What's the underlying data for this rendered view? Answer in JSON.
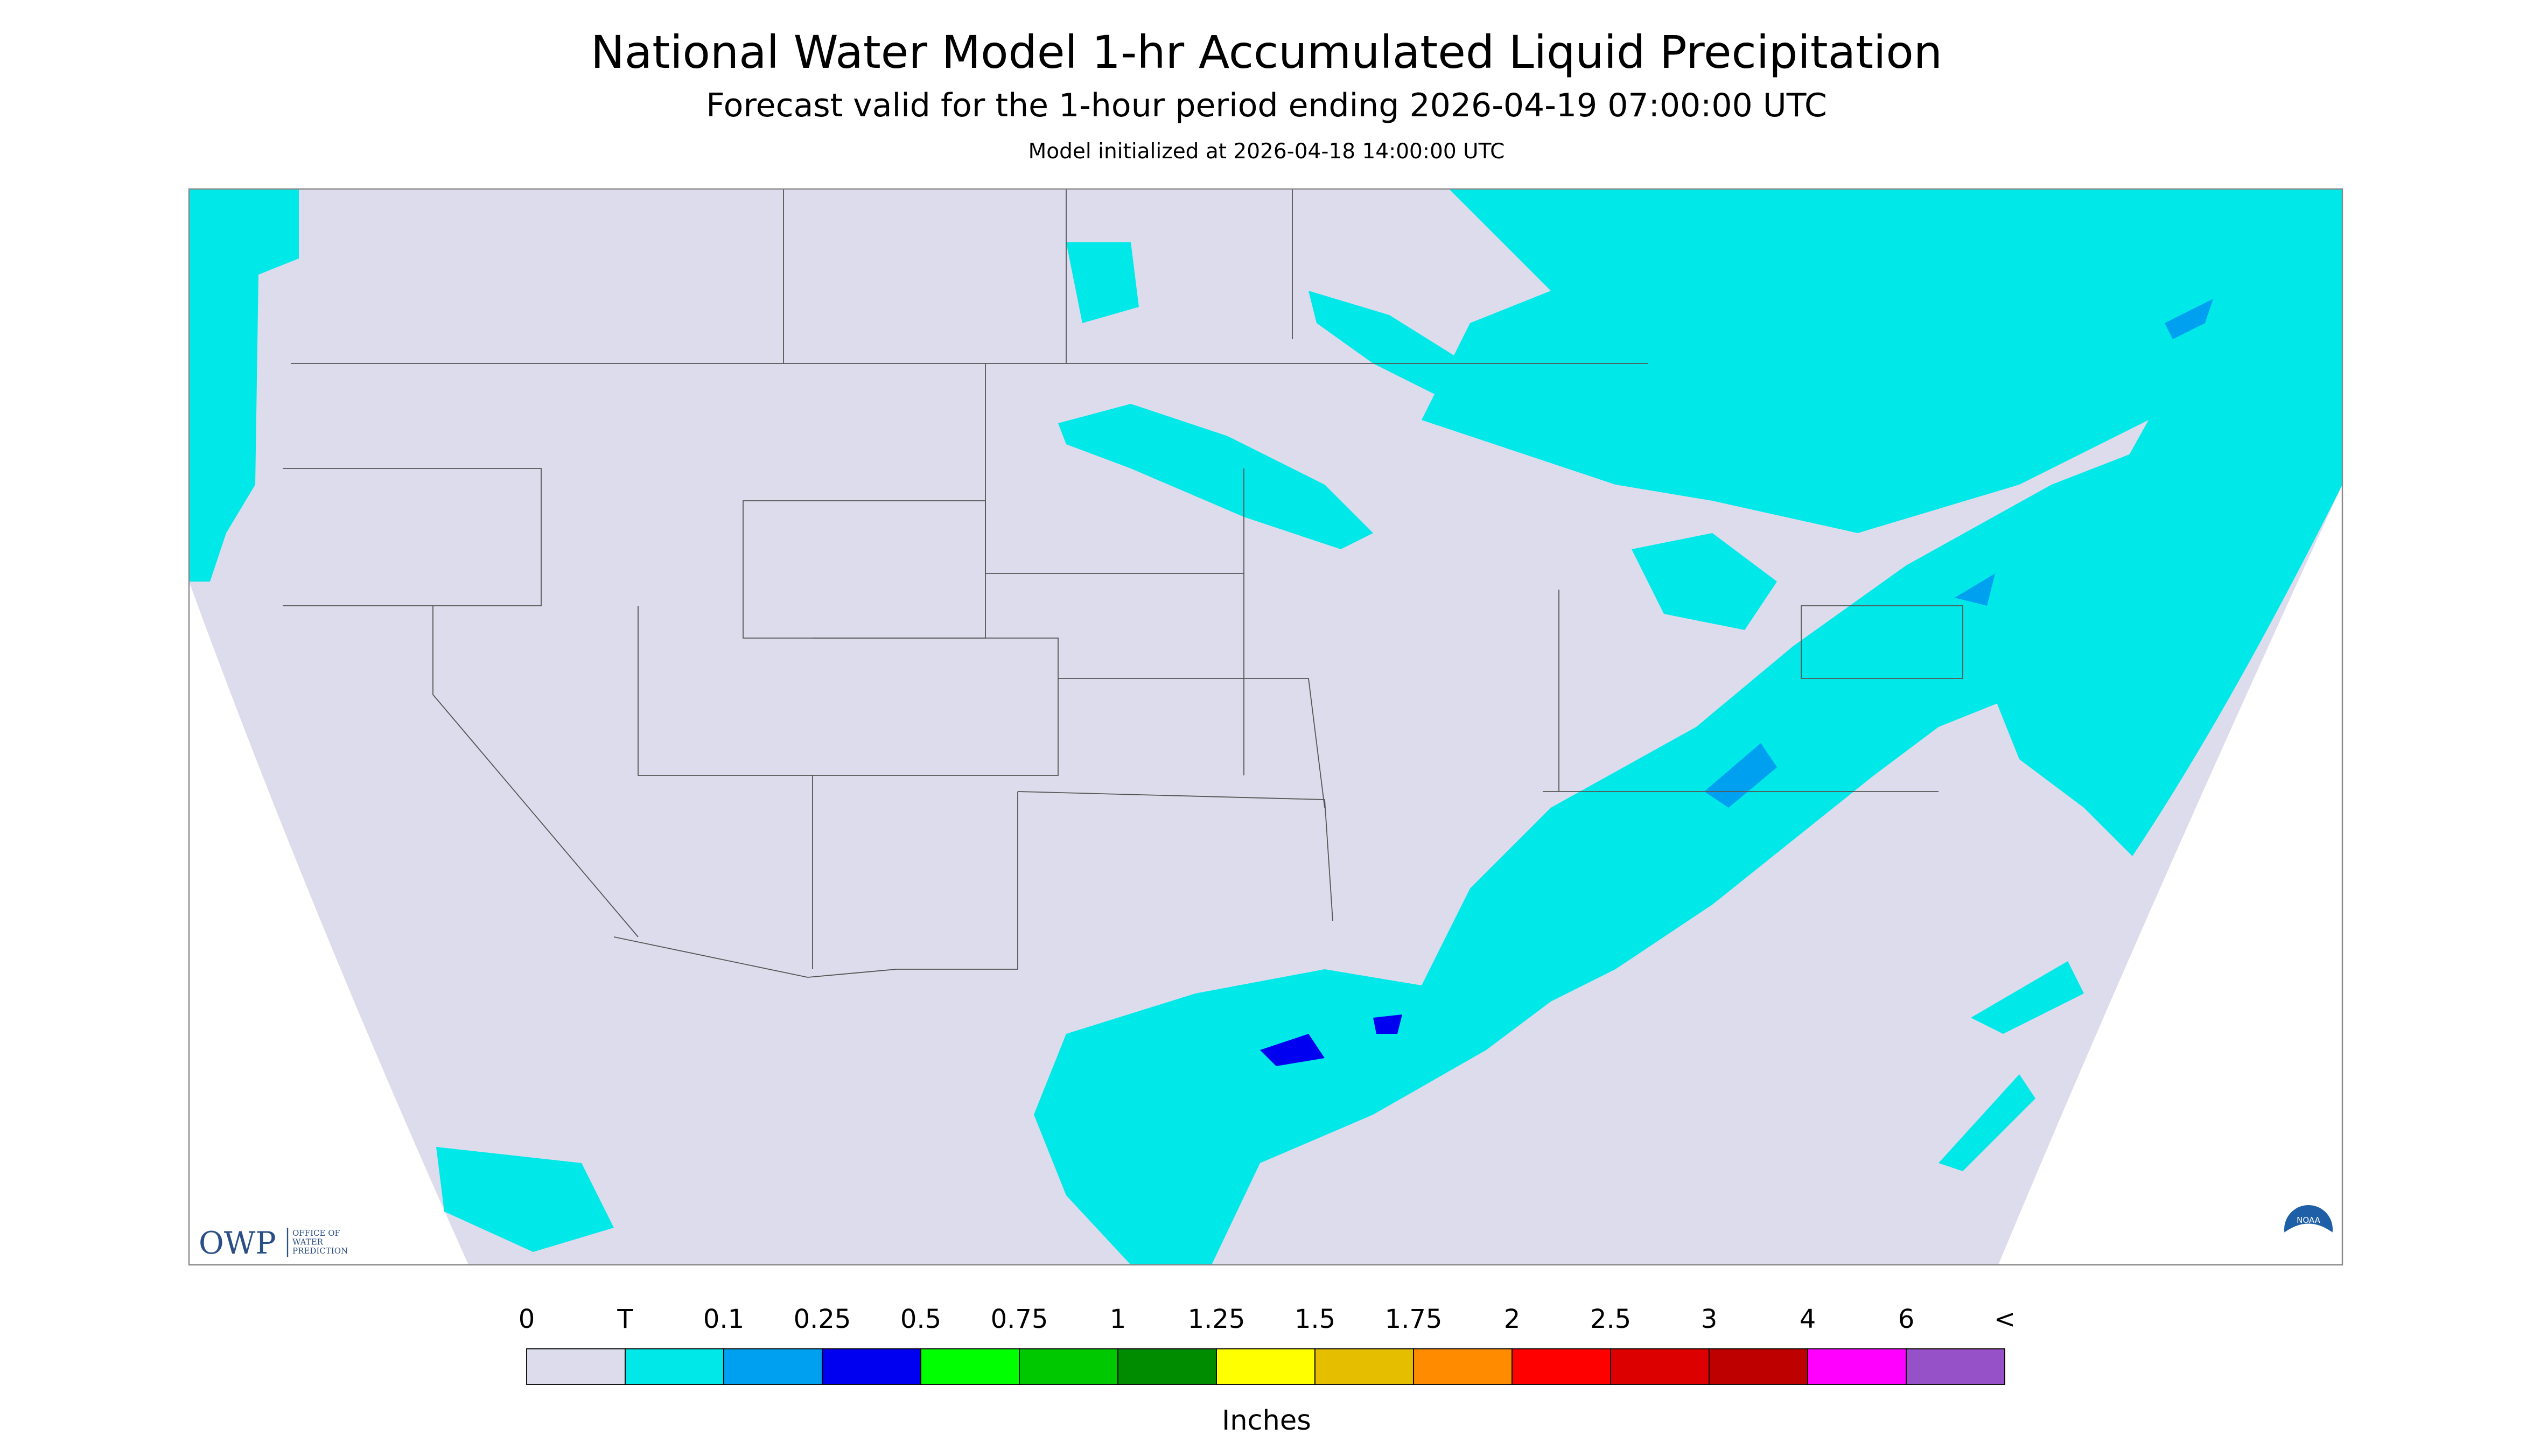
{
  "header": {
    "title": "National Water Model 1-hr Accumulated Liquid Precipitation",
    "subtitle": "Forecast valid for the 1-hour period ending 2026-04-19 07:00:00 UTC",
    "note": "Model initialized at 2026-04-18 14:00:00 UTC"
  },
  "logos": {
    "owp": "OWP",
    "owp_name": [
      "OFFICE OF",
      "WATER",
      "PREDICTION"
    ],
    "noaa": "NOAA"
  },
  "legend": {
    "labels": [
      "0",
      "T",
      "0.1",
      "0.25",
      "0.5",
      "0.75",
      "1",
      "1.25",
      "1.5",
      "1.75",
      "2",
      "2.5",
      "3",
      "4",
      "6",
      "<"
    ],
    "colors": [
      "#dcdcec",
      "#00e8e8",
      "#00a0f0",
      "#0000f0",
      "#00ff00",
      "#00c800",
      "#008c00",
      "#ffff00",
      "#e6be00",
      "#ff8c00",
      "#ff0000",
      "#dc0000",
      "#be0000",
      "#ff00ff",
      "#9650c8"
    ],
    "unit": "Inches"
  }
}
